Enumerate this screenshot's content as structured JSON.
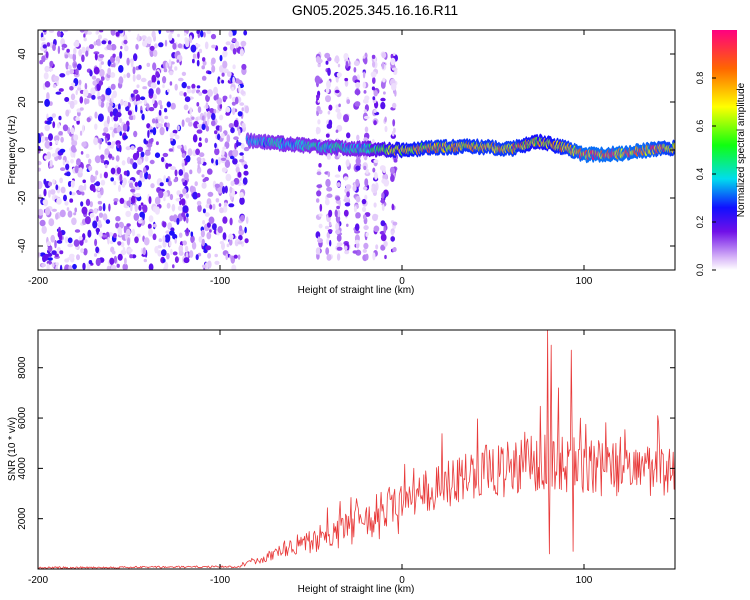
{
  "title": "GN05.2025.345.16.16.R11",
  "chart_data": [
    {
      "type": "heatmap",
      "name": "spectrogram",
      "xlabel": "Height of straight line (km)",
      "ylabel": "Frequency (Hz)",
      "xlim": [
        -200,
        150
      ],
      "ylim": [
        -50,
        50
      ],
      "xticks": [
        -200,
        -100,
        0,
        100
      ],
      "yticks": [
        -40,
        -20,
        0,
        20,
        40
      ],
      "colorbar": {
        "label": "Normalized spectral amplitude",
        "range": [
          0,
          1
        ],
        "ticks": [
          "0.0",
          "0.2",
          "0.4",
          "0.6",
          "0.8"
        ],
        "tick_values": [
          0,
          0.2,
          0.4,
          0.6,
          0.8
        ]
      },
      "regions": [
        {
          "x": [
            -200,
            -85
          ],
          "freq": [
            -50,
            50
          ],
          "amplitude": [
            0.02,
            0.25
          ],
          "kind": "broadband noise"
        },
        {
          "x": [
            -48,
            -2
          ],
          "freq": [
            -45,
            40
          ],
          "amplitude": [
            0.02,
            0.2
          ],
          "kind": "sparse vertical streaks"
        }
      ],
      "signal_track": [
        {
          "x": -85,
          "freq": 4,
          "amplitude": 0.35
        },
        {
          "x": -70,
          "freq": 3,
          "amplitude": 0.4
        },
        {
          "x": -55,
          "freq": 2,
          "amplitude": 0.4
        },
        {
          "x": -40,
          "freq": 1,
          "amplitude": 0.42
        },
        {
          "x": -20,
          "freq": 0.5,
          "amplitude": 0.42
        },
        {
          "x": 0,
          "freq": 0,
          "amplitude": 0.75
        },
        {
          "x": 20,
          "freq": 1,
          "amplitude": 0.8
        },
        {
          "x": 40,
          "freq": 1.5,
          "amplitude": 0.8
        },
        {
          "x": 60,
          "freq": 0.5,
          "amplitude": 0.82
        },
        {
          "x": 75,
          "freq": 3.5,
          "amplitude": 0.7
        },
        {
          "x": 90,
          "freq": 1,
          "amplitude": 0.8
        },
        {
          "x": 100,
          "freq": -2,
          "amplitude": 0.9
        },
        {
          "x": 120,
          "freq": -1.5,
          "amplitude": 0.9
        },
        {
          "x": 135,
          "freq": 0,
          "amplitude": 0.88
        },
        {
          "x": 150,
          "freq": 1,
          "amplitude": 0.8
        }
      ]
    },
    {
      "type": "line",
      "name": "snr",
      "xlabel": "Height of straight line (km)",
      "ylabel": "SNR (10 * v/v)",
      "xlim": [
        -200,
        150
      ],
      "ylim": [
        0,
        9500
      ],
      "xticks": [
        -200,
        -100,
        0,
        100
      ],
      "yticks": [
        2000,
        4000,
        6000,
        8000
      ],
      "color": "#e83a3a",
      "trend": [
        {
          "x": -200,
          "y": 50
        },
        {
          "x": -90,
          "y": 90
        },
        {
          "x": -80,
          "y": 350
        },
        {
          "x": -60,
          "y": 900
        },
        {
          "x": -40,
          "y": 1300
        },
        {
          "x": -20,
          "y": 1900
        },
        {
          "x": 0,
          "y": 2600
        },
        {
          "x": 20,
          "y": 3300
        },
        {
          "x": 40,
          "y": 3800
        },
        {
          "x": 60,
          "y": 4000
        },
        {
          "x": 80,
          "y": 4300
        },
        {
          "x": 100,
          "y": 4100
        },
        {
          "x": 120,
          "y": 3900
        },
        {
          "x": 150,
          "y": 3850
        }
      ],
      "spikes": [
        {
          "x": 80,
          "y": 9500
        },
        {
          "x": 81,
          "y": 600
        },
        {
          "x": 82,
          "y": 8900
        },
        {
          "x": 86,
          "y": 7200
        },
        {
          "x": 93,
          "y": 8700
        },
        {
          "x": 94,
          "y": 700
        },
        {
          "x": 98,
          "y": 6000
        }
      ]
    }
  ]
}
